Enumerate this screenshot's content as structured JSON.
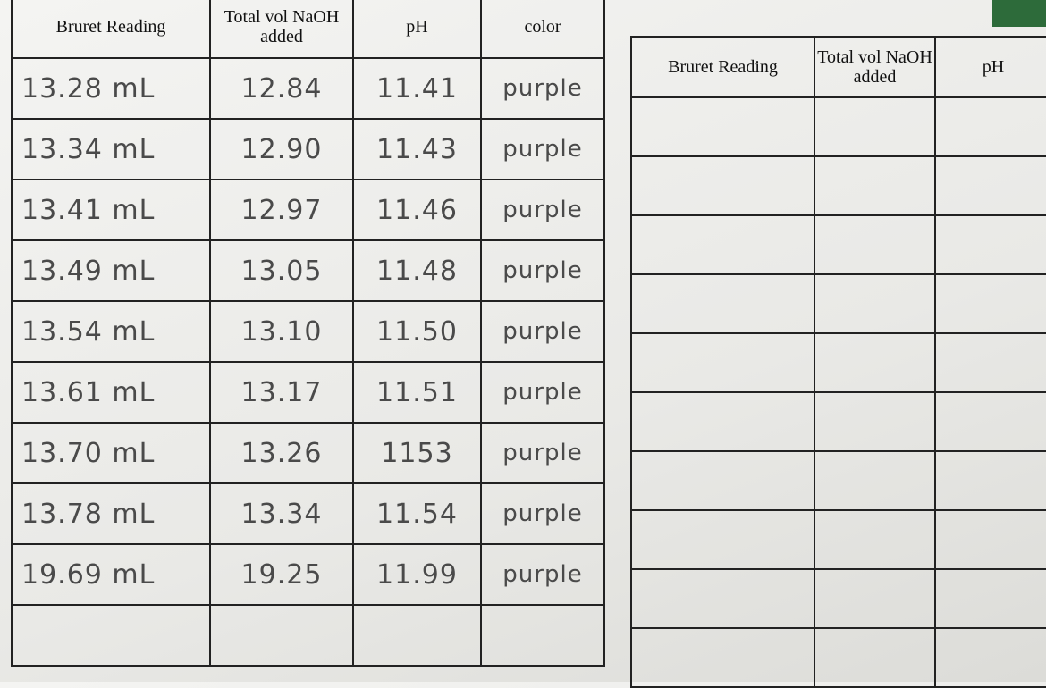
{
  "left_table": {
    "headers": [
      "Bruret Reading",
      "Total vol NaOH added",
      "pH",
      "color"
    ],
    "rows": [
      [
        "13.28 mL",
        "12.84",
        "11.41",
        "purple"
      ],
      [
        "13.34 mL",
        "12.90",
        "11.43",
        "purple"
      ],
      [
        "13.41 mL",
        "12.97",
        "11.46",
        "purple"
      ],
      [
        "13.49 mL",
        "13.05",
        "11.48",
        "purple"
      ],
      [
        "13.54 mL",
        "13.10",
        "11.50",
        "purple"
      ],
      [
        "13.61 mL",
        "13.17",
        "11.51",
        "purple"
      ],
      [
        "13.70 mL",
        "13.26",
        "1153",
        "purple"
      ],
      [
        "13.78 mL",
        "13.34",
        "11.54",
        "purple"
      ],
      [
        "19.69 mL",
        "19.25",
        "11.99",
        "purple"
      ]
    ]
  },
  "right_table": {
    "headers": [
      "Bruret Reading",
      "Total vol NaOH added",
      "pH"
    ]
  }
}
